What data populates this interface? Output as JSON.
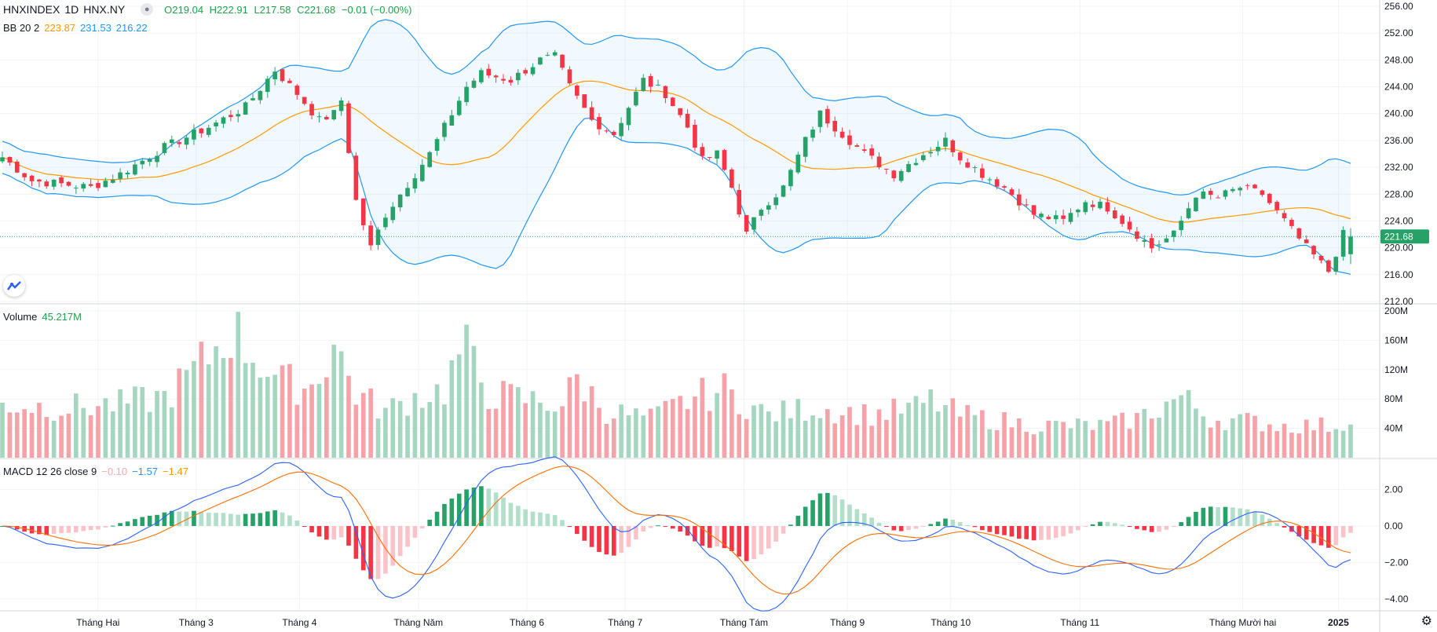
{
  "symbol": {
    "name": "HNXINDEX",
    "interval": "1D",
    "exchange": "HNX.NY"
  },
  "ohlc": {
    "o": "O219.04",
    "h": "H222.91",
    "l": "L217.58",
    "c": "C221.68",
    "chg": "−0.01 (−0.00%)"
  },
  "bb_legend": {
    "label": "BB 20 2",
    "basis": "223.87",
    "upper": "231.53",
    "lower": "216.22"
  },
  "volume_legend": {
    "label": "Volume",
    "value": "45.217M"
  },
  "macd_legend": {
    "label": "MACD 12 26 close 9",
    "hist": "−0.10",
    "macd": "−1.57",
    "signal": "−1.47"
  },
  "last_price_label": "221.68",
  "colors": {
    "up": "#26a269",
    "down": "#f23645",
    "bb_basis": "#ff9800",
    "bb_band": "#2196f3",
    "macd_line": "#2962ff",
    "signal_line": "#ff6d00"
  },
  "icons": {
    "logo": "tradingview-logo-icon",
    "collapse": "dot-icon",
    "settings": "gear-icon"
  },
  "chart_data": [
    {
      "type": "candlestick",
      "title": "HNXINDEX",
      "ylim": [
        212,
        256
      ],
      "yticks": [
        "256.00",
        "252.00",
        "248.00",
        "244.00",
        "240.00",
        "236.00",
        "232.00",
        "228.00",
        "224.00",
        "220.00",
        "216.00",
        "212.00"
      ],
      "x_tick_labels": [
        "Tháng Hai",
        "Tháng 3",
        "Tháng 4",
        "Tháng Năm",
        "Tháng 6",
        "Tháng 7",
        "Tháng Tám",
        "Tháng 9",
        "Tháng 10",
        "Tháng 11",
        "Tháng Mười hai",
        "2025"
      ],
      "anchors_close": [
        [
          0,
          233.5
        ],
        [
          4,
          230
        ],
        [
          8,
          229.5
        ],
        [
          12,
          229
        ],
        [
          16,
          231
        ],
        [
          22,
          235
        ],
        [
          28,
          238
        ],
        [
          33,
          241
        ],
        [
          37,
          246.5
        ],
        [
          40,
          243
        ],
        [
          43,
          239
        ],
        [
          45,
          240
        ],
        [
          46,
          242
        ],
        [
          48,
          227
        ],
        [
          50,
          220
        ],
        [
          52,
          225
        ],
        [
          54,
          228
        ],
        [
          58,
          234
        ],
        [
          63,
          244
        ],
        [
          65,
          246
        ],
        [
          69,
          245
        ],
        [
          73,
          248
        ],
        [
          75,
          248.5
        ],
        [
          77,
          244
        ],
        [
          80,
          239
        ],
        [
          83,
          237
        ],
        [
          87,
          245
        ],
        [
          90,
          243
        ],
        [
          93,
          238
        ],
        [
          95,
          233
        ],
        [
          97,
          234
        ],
        [
          99,
          229
        ],
        [
          101,
          222
        ],
        [
          103,
          226
        ],
        [
          106,
          229
        ],
        [
          109,
          236
        ],
        [
          111,
          240
        ],
        [
          114,
          237
        ],
        [
          117,
          234
        ],
        [
          121,
          231
        ],
        [
          125,
          234
        ],
        [
          128,
          236
        ],
        [
          130,
          233.5
        ],
        [
          133,
          231
        ],
        [
          136,
          229
        ],
        [
          140,
          225
        ],
        [
          144,
          224
        ],
        [
          147,
          227
        ],
        [
          150,
          226
        ],
        [
          153,
          223
        ],
        [
          156,
          220
        ],
        [
          159,
          222
        ],
        [
          162,
          228
        ],
        [
          165,
          227.5
        ],
        [
          168,
          229
        ],
        [
          171,
          228
        ],
        [
          174,
          224
        ],
        [
          177,
          220
        ],
        [
          180,
          216.5
        ],
        [
          182,
          222
        ],
        [
          183,
          221.68
        ]
      ],
      "bollinger": {
        "period": 20,
        "stddev": 2,
        "basis_last": 223.87,
        "upper_last": 231.53,
        "lower_last": 216.22
      }
    },
    {
      "type": "bar",
      "title": "Volume",
      "ylim": [
        0,
        200
      ],
      "yticks": [
        "200M",
        "160M",
        "120M",
        "80M",
        "40M"
      ],
      "unit": "M",
      "anchors": [
        [
          0,
          75
        ],
        [
          8,
          70
        ],
        [
          16,
          75
        ],
        [
          22,
          85
        ],
        [
          26,
          120
        ],
        [
          30,
          165
        ],
        [
          31,
          180
        ],
        [
          34,
          145
        ],
        [
          38,
          105
        ],
        [
          42,
          100
        ],
        [
          45,
          160
        ],
        [
          48,
          90
        ],
        [
          52,
          65
        ],
        [
          56,
          85
        ],
        [
          60,
          95
        ],
        [
          62,
          145
        ],
        [
          63,
          148
        ],
        [
          66,
          90
        ],
        [
          72,
          80
        ],
        [
          76,
          75
        ],
        [
          78,
          110
        ],
        [
          82,
          65
        ],
        [
          88,
          55
        ],
        [
          94,
          85
        ],
        [
          98,
          95
        ],
        [
          100,
          80
        ],
        [
          104,
          60
        ],
        [
          110,
          70
        ],
        [
          118,
          60
        ],
        [
          124,
          70
        ],
        [
          126,
          80
        ],
        [
          130,
          60
        ],
        [
          140,
          45
        ],
        [
          150,
          45
        ],
        [
          154,
          55
        ],
        [
          160,
          85
        ],
        [
          164,
          55
        ],
        [
          170,
          50
        ],
        [
          174,
          45
        ],
        [
          178,
          45
        ],
        [
          183,
          45.217
        ]
      ]
    },
    {
      "type": "line",
      "title": "MACD 12 26 close 9",
      "ylim": [
        -4,
        3
      ],
      "yticks": [
        "2.00",
        "0.00",
        "−2.00",
        "−4.00"
      ],
      "series": [
        {
          "name": "MACD",
          "last": -1.57
        },
        {
          "name": "Signal",
          "last": -1.47
        },
        {
          "name": "Histogram",
          "last": -0.1
        }
      ]
    }
  ]
}
